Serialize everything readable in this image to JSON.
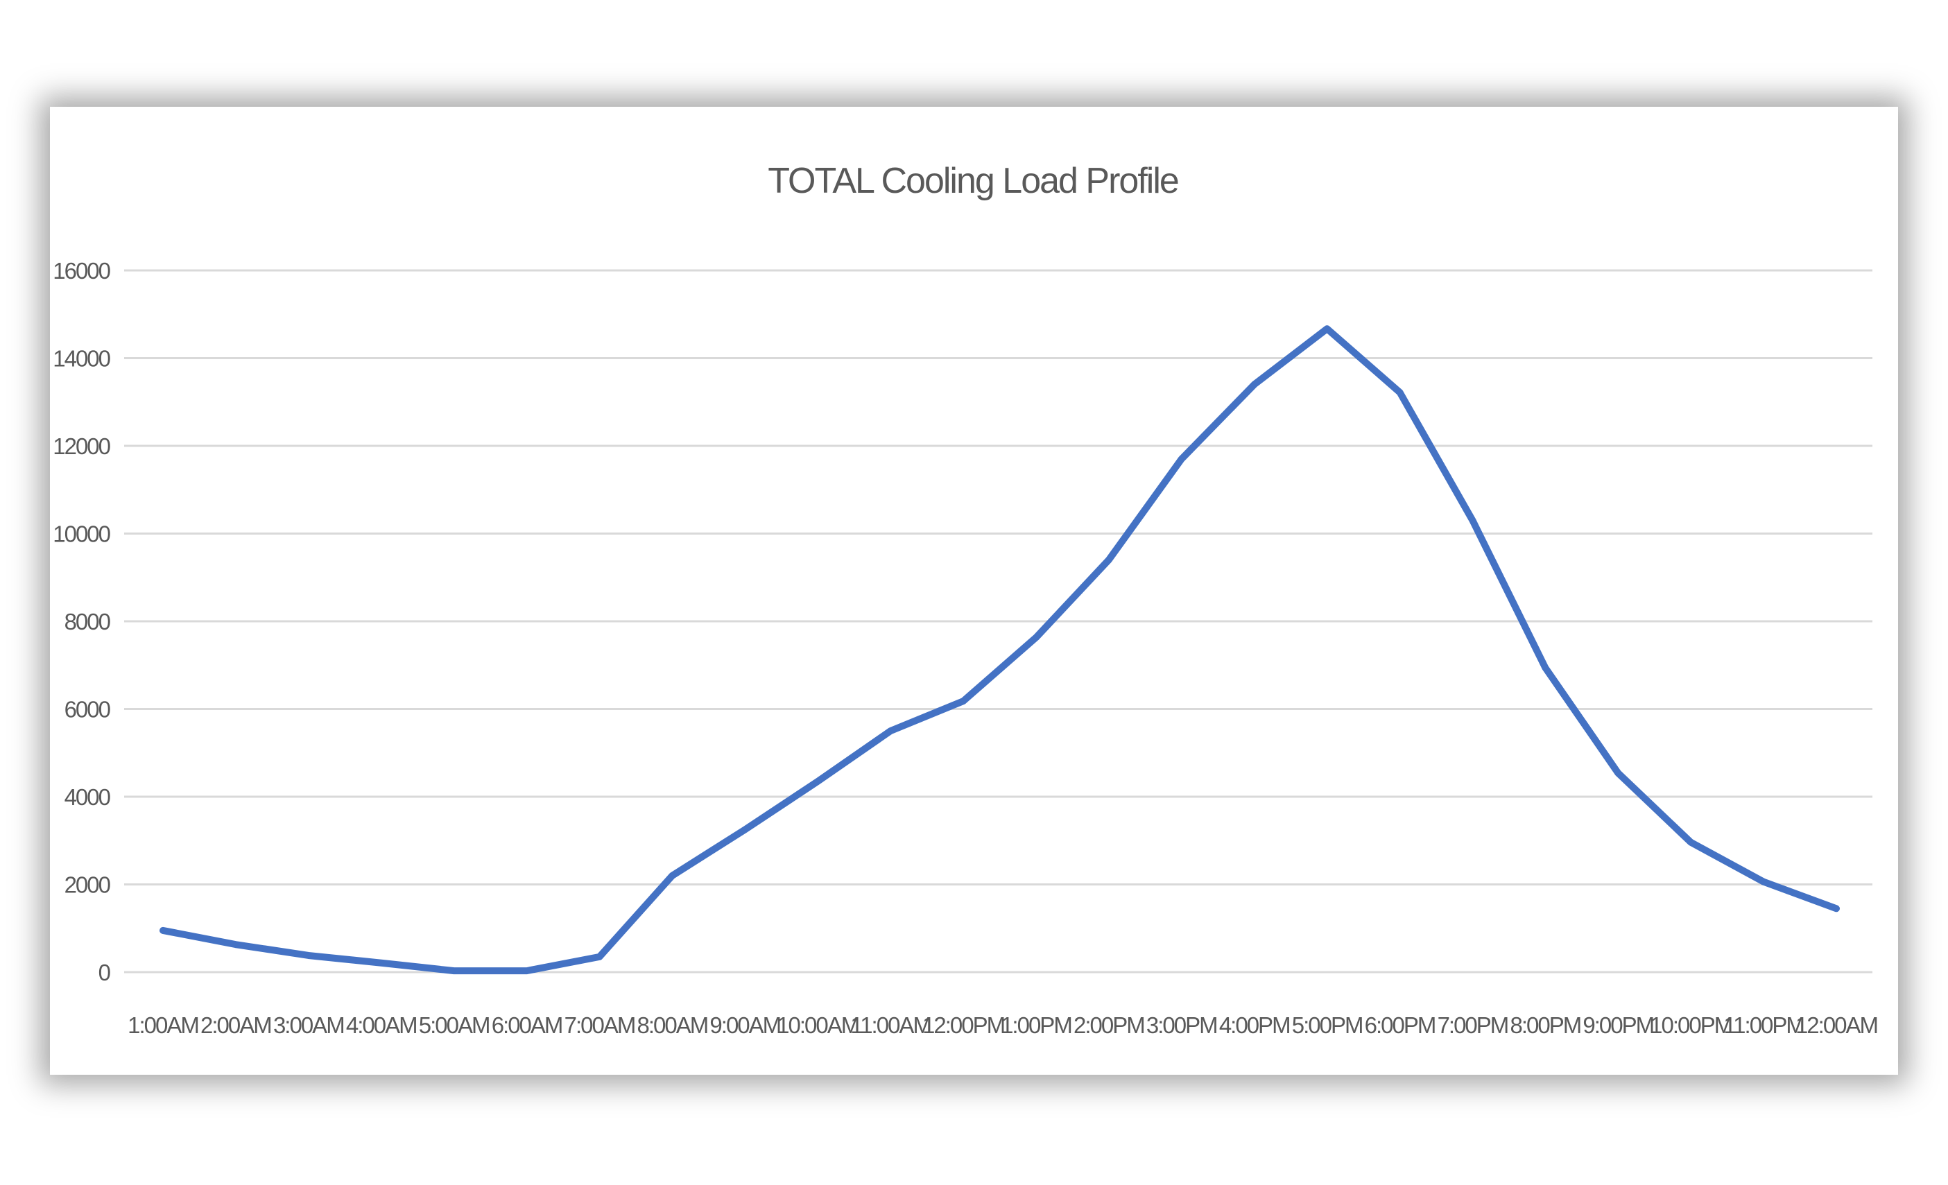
{
  "chart_data": {
    "type": "line",
    "title": "TOTAL Cooling Load Profile",
    "xlabel": "",
    "ylabel": "",
    "ylim": [
      0,
      16000
    ],
    "yticks": [
      "0",
      "2000",
      "4000",
      "6000",
      "8000",
      "10000",
      "12000",
      "14000",
      "16000"
    ],
    "grid": true,
    "legend": "none",
    "color": "#4472C4",
    "categories": [
      "1:00AM",
      "2:00AM",
      "3:00AM",
      "4:00AM",
      "5:00AM",
      "6:00AM",
      "7:00AM",
      "8:00AM",
      "9:00AM",
      "10:00AM",
      "11:00AM",
      "12:00PM",
      "1:00PM",
      "2:00PM",
      "3:00PM",
      "4:00PM",
      "5:00PM",
      "6:00PM",
      "7:00PM",
      "8:00PM",
      "9:00PM",
      "10:00PM",
      "11:00PM",
      "12:00AM"
    ],
    "series": [
      {
        "name": "TOTAL Cooling Load",
        "values": [
          950,
          630,
          380,
          210,
          30,
          30,
          350,
          2200,
          3250,
          4350,
          5500,
          6180,
          7630,
          9400,
          11700,
          13400,
          14670,
          13220,
          10300,
          6940,
          4540,
          2960,
          2060,
          1450
        ]
      }
    ]
  }
}
